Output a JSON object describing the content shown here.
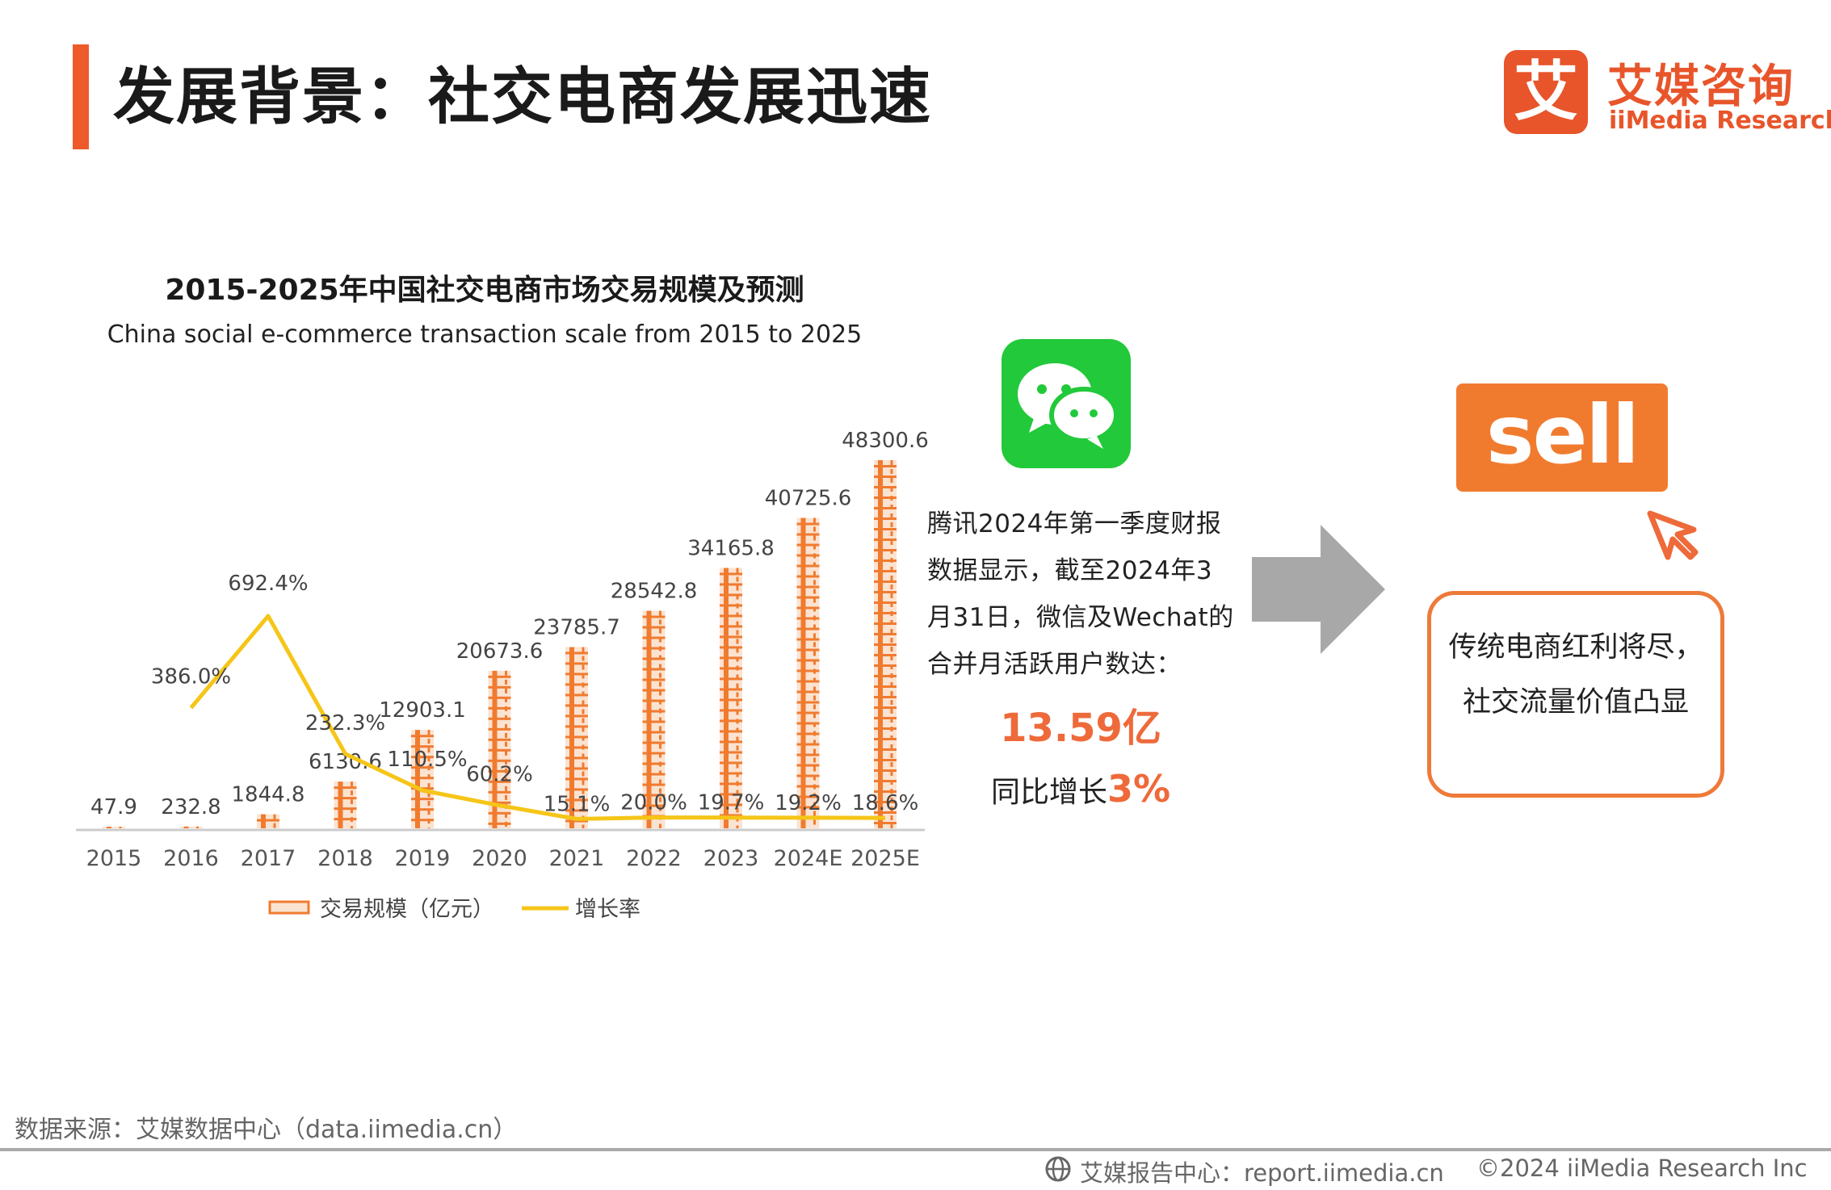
{
  "header": {
    "title": "发展背景：社交电商发展迅速",
    "logo_mark": "艾",
    "logo_cn": "艾媒咨询",
    "logo_en": "iiMedia Research",
    "accent_color": "#ee5a2a"
  },
  "chart_data": {
    "type": "bar",
    "title": "2015-2025年中国社交电商市场交易规模及预测",
    "subtitle": "China social e-commerce transaction scale from 2015 to 2025",
    "categories": [
      "2015",
      "2016",
      "2017",
      "2018",
      "2019",
      "2020",
      "2021",
      "2022",
      "2023",
      "2024E",
      "2025E"
    ],
    "series": [
      {
        "name": "交易规模（亿元）",
        "type": "bar",
        "color": "#f07b2f",
        "values": [
          47.9,
          232.8,
          1844.8,
          6130.6,
          12903.1,
          20673.6,
          23785.7,
          28542.8,
          34165.8,
          40725.6,
          48300.6
        ],
        "labels": [
          "47.9",
          "232.8",
          "1844.8",
          "6130.6",
          "12903.1",
          "20673.6",
          "23785.7",
          "28542.8",
          "34165.8",
          "40725.6",
          "48300.6"
        ]
      },
      {
        "name": "增长率",
        "type": "line",
        "color": "#f5c518",
        "values": [
          null,
          386.0,
          692.4,
          232.3,
          110.5,
          60.2,
          15.1,
          20.0,
          19.7,
          19.2,
          18.6
        ],
        "labels": [
          "",
          "386.0%",
          "692.4%",
          "232.3%",
          "110.5%",
          "60.2%",
          "15.1%",
          "20.0%",
          "19.7%",
          "19.2%",
          "18.6%"
        ]
      }
    ],
    "legend": {
      "position": "bottom",
      "items": [
        "交易规模（亿元）",
        "增长率"
      ]
    },
    "grid": false
  },
  "side_info": {
    "wechat_icon": "wechat-icon",
    "tencent_text": "腾讯2024年第一季度财报数据显示，截至2024年3月31日，微信及Wechat的合并月活跃用户数达：",
    "big_number": "13.59亿",
    "growth_prefix": "同比增长",
    "growth_value": "3%",
    "sell_label": "sell",
    "quote": "传统电商红利将尽，社交流量价值凸显"
  },
  "footer": {
    "source": "数据来源：艾媒数据中心（data.iimedia.cn）",
    "report_center": "艾媒报告中心：report.iimedia.cn",
    "copyright": "©2024  iiMedia Research Inc"
  }
}
